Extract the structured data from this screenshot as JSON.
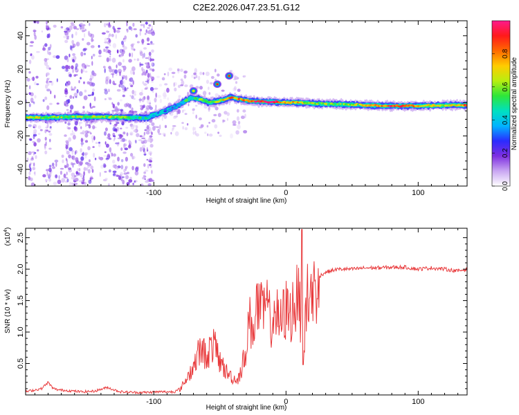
{
  "title": "C2E2.2026.047.23.51.G12",
  "colors": {
    "trace": "#e8383a",
    "axis": "#000000",
    "background": "#ffffff",
    "colorbar_stops": [
      "#ffffff",
      "#c9a6f2",
      "#7e2fe0",
      "#2b2bff",
      "#00b4ff",
      "#00e0c0",
      "#2ee63a",
      "#b8ee10",
      "#ffcc00",
      "#ff6a00",
      "#ff1a1a",
      "#ff1a8c"
    ]
  },
  "chart_data": [
    {
      "type": "heatmap",
      "title": "C2E2.2026.047.23.51.G12",
      "xlabel": "Height of straight line (km)",
      "ylabel": "Frequency (Hz)",
      "xlim": [
        -197,
        137
      ],
      "ylim": [
        -50,
        49
      ],
      "x_ticks": [
        -100,
        0,
        100
      ],
      "x_tick_labels": [
        "-100",
        "0",
        "100"
      ],
      "y_ticks": [
        -40,
        -20,
        0,
        20,
        40
      ],
      "y_tick_labels": [
        "-40",
        "-20",
        "0",
        "20",
        "40"
      ],
      "colorbar": {
        "label": "Normalized spectral amplitude",
        "range": [
          0,
          1
        ],
        "ticks": [
          0.0,
          0.2,
          0.4,
          0.6,
          0.8
        ],
        "tick_labels": [
          "0.0",
          "0.2",
          "0.4",
          "0.6",
          "0.8"
        ]
      },
      "ridge": {
        "x": [
          -197,
          -180,
          -160,
          -140,
          -120,
          -105,
          -95,
          -85,
          -78,
          -72,
          -65,
          -58,
          -50,
          -42,
          -35,
          -28,
          -20,
          -10,
          0,
          10,
          20,
          40,
          60,
          80,
          100,
          120,
          137
        ],
        "frequency": [
          -9,
          -9,
          -8.5,
          -8.5,
          -9,
          -9,
          -6,
          -3,
          0,
          3,
          2,
          0,
          1,
          3,
          2,
          1,
          0.5,
          0.5,
          0,
          0,
          -0.5,
          -1,
          -1.5,
          -2,
          -2,
          -1.5,
          -1.5
        ],
        "amplitude": [
          0.55,
          0.6,
          0.5,
          0.55,
          0.5,
          0.4,
          0.35,
          0.3,
          0.4,
          0.45,
          0.5,
          0.55,
          0.6,
          0.7,
          0.75,
          0.8,
          0.85,
          0.9,
          0.75,
          0.65,
          0.55,
          0.55,
          0.6,
          0.85,
          0.7,
          0.55,
          0.8
        ]
      },
      "spots": [
        {
          "x": -52,
          "frequency": 11,
          "amplitude": 0.9
        },
        {
          "x": -43,
          "frequency": 16,
          "amplitude": 0.9
        },
        {
          "x": -70,
          "frequency": 7,
          "amplitude": 0.7
        }
      ],
      "noise_bands": [
        {
          "x_range": [
            -197,
            -100
          ],
          "frequency_range": [
            -50,
            49
          ],
          "amplitude": 0.15
        },
        {
          "x_range": [
            -100,
            -30
          ],
          "frequency_range": [
            -20,
            20
          ],
          "amplitude": 0.1
        }
      ]
    },
    {
      "type": "line",
      "xlabel": "Height of straight line (km)",
      "ylabel": "SNR (10 * v/v)",
      "y_multiplier_label": "(x10",
      "y_multiplier_exponent": "4",
      "y_multiplier_close": ")",
      "xlim": [
        -197,
        137
      ],
      "ylim": [
        0,
        2.65
      ],
      "x_ticks": [
        -100,
        0,
        100
      ],
      "x_tick_labels": [
        "-100",
        "0",
        "100"
      ],
      "y_ticks": [
        0.5,
        1.0,
        1.5,
        2.0,
        2.5
      ],
      "y_tick_labels": [
        "0.5",
        "1.0",
        "1.5",
        "2.0",
        "2.5"
      ],
      "series": [
        {
          "name": "SNR",
          "x": [
            -197,
            -190,
            -185,
            -180,
            -176,
            -172,
            -165,
            -155,
            -145,
            -135,
            -130,
            -125,
            -115,
            -105,
            -95,
            -85,
            -80,
            -75,
            -70,
            -65,
            -60,
            -55,
            -50,
            -45,
            -40,
            -37,
            -33,
            -30,
            -28,
            -25,
            -22,
            -18,
            -15,
            -12,
            -8,
            -5,
            -2,
            0,
            3,
            6,
            9,
            11,
            12,
            13,
            15,
            18,
            22,
            26,
            30,
            35,
            40,
            50,
            60,
            70,
            80,
            90,
            100,
            110,
            120,
            130,
            137
          ],
          "y": [
            0.05,
            0.08,
            0.1,
            0.2,
            0.1,
            0.08,
            0.07,
            0.05,
            0.06,
            0.12,
            0.08,
            0.05,
            0.04,
            0.04,
            0.05,
            0.05,
            0.1,
            0.3,
            0.5,
            0.8,
            0.7,
            0.9,
            0.6,
            0.4,
            0.3,
            0.25,
            0.5,
            0.9,
            1.3,
            1.2,
            1.6,
            1.4,
            1.6,
            1.3,
            1.5,
            1.2,
            1.4,
            1.5,
            1.4,
            1.6,
            1.7,
            1.5,
            2.6,
            0.5,
            1.7,
            1.75,
            1.85,
            1.9,
            1.95,
            1.98,
            2.0,
            2.0,
            2.02,
            2.02,
            2.03,
            2.03,
            2.0,
            2.02,
            2.0,
            1.97,
            2.0
          ]
        }
      ]
    }
  ]
}
